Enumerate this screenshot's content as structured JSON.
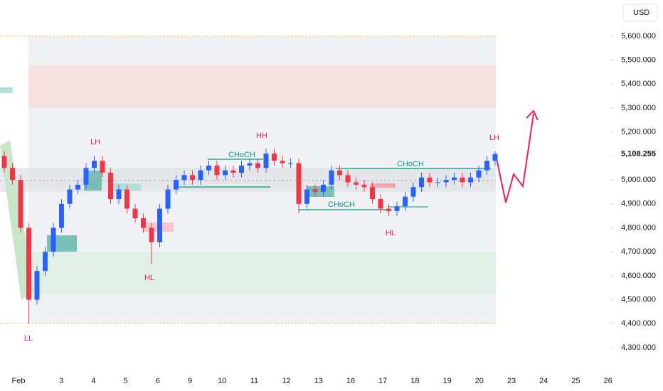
{
  "chart_data": {
    "type": "candlestick",
    "currency": "USD",
    "categories": [
      "Feb",
      "3",
      "4",
      "5",
      "6",
      "9",
      "10",
      "11",
      "12",
      "13",
      "16",
      "17",
      "18",
      "19",
      "20",
      "23",
      "24",
      "25",
      "26"
    ],
    "ylim": [
      4208,
      5751
    ],
    "yticks": [
      {
        "value": 4300,
        "label": "4,300.000"
      },
      {
        "value": 4400,
        "label": "4,400.000"
      },
      {
        "value": 4500,
        "label": "4,500.000"
      },
      {
        "value": 4600,
        "label": "4,600.000"
      },
      {
        "value": 4700,
        "label": "4,700.000"
      },
      {
        "value": 4800,
        "label": "4,800.000"
      },
      {
        "value": 4900,
        "label": "4,900.000"
      },
      {
        "value": 5000,
        "label": "5,000.000"
      },
      {
        "value": 5100,
        "label": "5,100.000"
      },
      {
        "value": 5200,
        "label": "5,200.000"
      },
      {
        "value": 5300,
        "label": "5,300.000"
      },
      {
        "value": 5400,
        "label": "5,400.000"
      },
      {
        "value": 5500,
        "label": "5,500.000"
      },
      {
        "value": 5600,
        "label": "5,600.000"
      }
    ],
    "last_price": {
      "value": 5108.255,
      "label": "5,108.255"
    },
    "up_color": "#2962ff",
    "down_color": "#f23645",
    "open": [
      5100,
      5050,
      5000,
      4800,
      4500,
      4620,
      4700,
      4800,
      4900,
      4960,
      4980,
      5050,
      5080,
      5030,
      4920,
      4960,
      4880,
      4840,
      4800,
      4740,
      4880,
      4960,
      5000,
      5020,
      5000,
      5040,
      5060,
      5020,
      5040,
      5030,
      5060,
      5070,
      5050,
      5110,
      5080,
      5070,
      5070,
      4900,
      4960,
      4950,
      4980,
      5040,
      5020,
      4990,
      4980,
      4970,
      4920,
      4880,
      4870,
      4890,
      4930,
      4970,
      5010,
      4990,
      4990,
      5000,
      5010,
      4990,
      5010,
      5040,
      5080
    ],
    "high": [
      5120,
      5070,
      5020,
      4820,
      4640,
      4720,
      4820,
      4920,
      4980,
      5000,
      5070,
      5100,
      5100,
      5050,
      4980,
      4980,
      4900,
      4860,
      4820,
      4900,
      4980,
      5020,
      5040,
      5040,
      5060,
      5080,
      5080,
      5060,
      5060,
      5080,
      5090,
      5090,
      5130,
      5130,
      5100,
      5090,
      5090,
      4980,
      4980,
      5000,
      5060,
      5060,
      5040,
      5010,
      5000,
      4990,
      4940,
      4900,
      4910,
      4950,
      4990,
      5030,
      5030,
      5010,
      5020,
      5030,
      5030,
      5030,
      5060,
      5100,
      5120
    ],
    "low": [
      5030,
      4980,
      4780,
      4400,
      4480,
      4600,
      4680,
      4780,
      4880,
      4940,
      4960,
      5030,
      5010,
      4900,
      4900,
      4860,
      4820,
      4780,
      4650,
      4720,
      4860,
      4940,
      4980,
      4980,
      4980,
      5020,
      5000,
      5000,
      5010,
      5010,
      5040,
      5030,
      5030,
      5060,
      5050,
      5050,
      4860,
      4880,
      4930,
      4930,
      4960,
      5000,
      4970,
      4960,
      4950,
      4900,
      4860,
      4850,
      4850,
      4870,
      4910,
      4950,
      4970,
      4970,
      4970,
      4980,
      4970,
      4970,
      4990,
      5020,
      5060
    ],
    "close": [
      5050,
      5000,
      4800,
      4500,
      4620,
      4700,
      4800,
      4900,
      4960,
      4980,
      5050,
      5080,
      5030,
      4920,
      4960,
      4880,
      4840,
      4800,
      4740,
      4880,
      4960,
      5000,
      5020,
      5000,
      5040,
      5060,
      5020,
      5040,
      5030,
      5060,
      5070,
      5050,
      5110,
      5080,
      5070,
      5070,
      4900,
      4960,
      4950,
      4980,
      5040,
      5020,
      4990,
      4980,
      4970,
      4920,
      4880,
      4870,
      4890,
      4930,
      4970,
      5010,
      4990,
      4990,
      5000,
      5010,
      4990,
      5010,
      5040,
      5080,
      5108.255
    ],
    "annotations": [
      "LL",
      "LH",
      "HL",
      "HH",
      "LH",
      "HL",
      "CHoCH",
      "CHoCH",
      "CHoCH"
    ]
  }
}
